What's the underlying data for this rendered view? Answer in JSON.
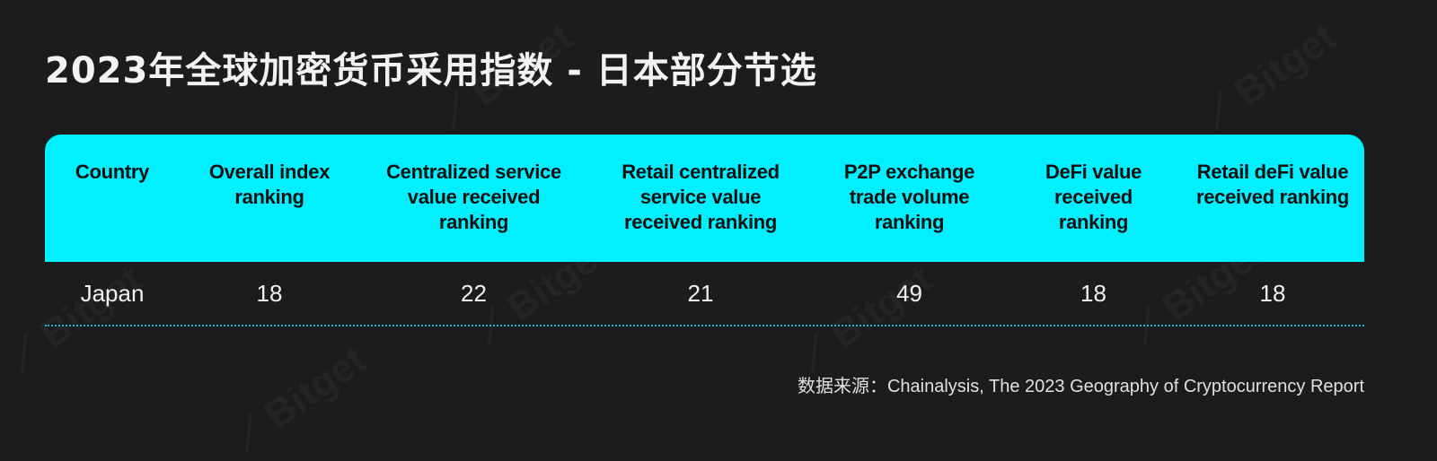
{
  "title": "2023年全球加密货币采用指数 - 日本部分节选",
  "watermark": "Bitget",
  "colors": {
    "header_bg": "#00f0ff",
    "background": "#1c1c1c",
    "divider": "#1fb6c2"
  },
  "chart_data": {
    "type": "table",
    "columns": [
      "Country",
      "Overall index ranking",
      "Centralized service value received ranking",
      "Retail centralized service value received ranking",
      "P2P exchange trade volume ranking",
      "DeFi value received ranking",
      "Retail deFi value received ranking"
    ],
    "rows": [
      [
        "Japan",
        "18",
        "22",
        "21",
        "49",
        "18",
        "18"
      ]
    ]
  },
  "source": "数据来源：Chainalysis, The 2023 Geography of Cryptocurrency Report"
}
